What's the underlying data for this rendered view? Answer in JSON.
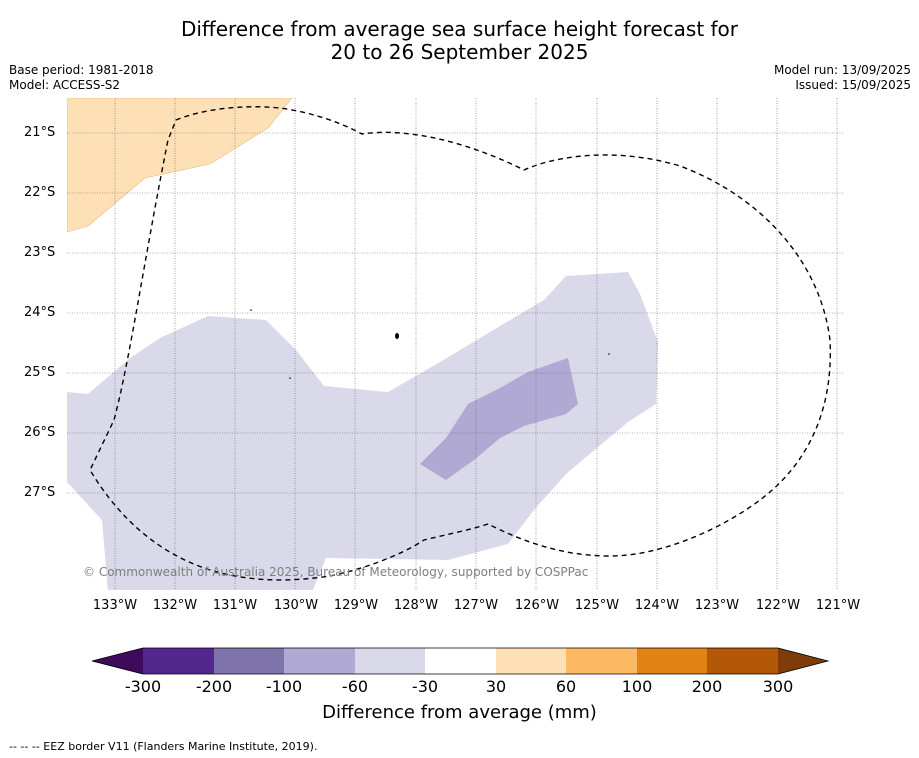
{
  "title_line1": "Difference from average sea surface height forecast for",
  "title_line2": "20 to 26 September 2025",
  "base_period": "Base period: 1981-2018",
  "model": "Model: ACCESS-S2",
  "model_run": "Model run: 13/09/2025",
  "issued": "Issued: 15/09/2025",
  "latitudes": [
    "21°S",
    "22°S",
    "23°S",
    "24°S",
    "25°S",
    "26°S",
    "27°S"
  ],
  "longitudes": [
    "133°W",
    "132°W",
    "131°W",
    "130°W",
    "129°W",
    "128°W",
    "127°W",
    "126°W",
    "125°W",
    "124°W",
    "123°W",
    "122°W",
    "121°W"
  ],
  "copyright": "© Commonwealth of Australia 2025, Bureau of Meteorology, supported by COSPPac",
  "colorbar": {
    "label": "Difference from average (mm)",
    "ticks": [
      "-300",
      "-200",
      "-100",
      "-60",
      "-30",
      "30",
      "60",
      "100",
      "200",
      "300"
    ],
    "colors": [
      "#3f0a5e",
      "#54278f",
      "#7f73ab",
      "#b0a9d3",
      "#d9d9ea",
      "#ffffff",
      "#fee0b6",
      "#fdb863",
      "#e08214",
      "#b35806",
      "#7f3b08"
    ]
  },
  "footer": "--  --  -- EEZ border V11 (Flanders Marine Institute, 2019)."
}
